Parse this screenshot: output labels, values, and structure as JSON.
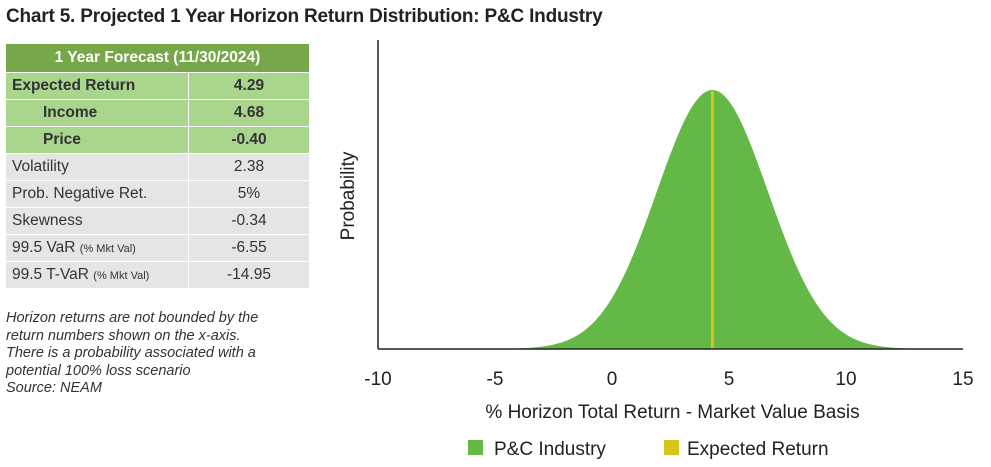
{
  "title": "Chart 5. Projected 1 Year Horizon Return Distribution: P&C Industry",
  "table": {
    "header": "1 Year Forecast (11/30/2024)",
    "rows": [
      {
        "label": "Expected Return",
        "value": "4.29"
      },
      {
        "label": "Income",
        "value": "4.68"
      },
      {
        "label": "Price",
        "value": "-0.40"
      },
      {
        "label": "Volatility",
        "value": "2.38"
      },
      {
        "label": "Prob. Negative Ret.",
        "value": "5%"
      },
      {
        "label": "Skewness",
        "value": "-0.34"
      },
      {
        "label": "99.5 VaR",
        "unit": "(% Mkt Val)",
        "value": "-6.55"
      },
      {
        "label": "99.5 T-VaR",
        "unit": "(% Mkt Val)",
        "value": "-14.95"
      }
    ]
  },
  "notes": [
    "Horizon returns are not bounded by the",
    "return numbers shown on the x-axis.",
    "There is a probability associated with a",
    "potential 100% loss scenario"
  ],
  "source": "Source: NEAM",
  "chart_data": {
    "type": "area",
    "xlabel": "% Horizon Total Return - Market Value Basis",
    "ylabel": "Probability",
    "xlim": [
      -10,
      15
    ],
    "xticks": [
      "-10",
      "-5",
      "0",
      "5",
      "10",
      "15"
    ],
    "distribution": {
      "mean": 4.29,
      "std": 2.38,
      "skewness": -0.34
    },
    "expected_return": 4.29,
    "series": [
      {
        "name": "P&C Industry",
        "color": "#63b846"
      },
      {
        "name": "Expected Return",
        "color": "#d4c41b"
      }
    ],
    "colors": {
      "density_fill": "#63b846",
      "expected_line": "#d4c41b"
    },
    "legend": "bottom",
    "grid": false
  }
}
